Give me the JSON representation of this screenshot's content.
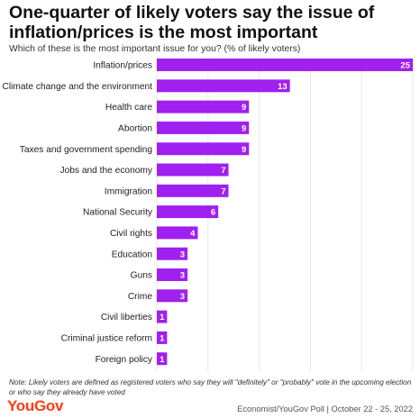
{
  "header": {
    "title": "One-quarter of likely voters say the issue of inflation/prices is the most important",
    "subtitle": "Which of these is the most important issue for you? (% of likely voters)"
  },
  "chart_data": {
    "type": "bar",
    "orientation": "horizontal",
    "categories": [
      "Inflation/prices",
      "Climate change and the environment",
      "Health care",
      "Abortion",
      "Taxes and government spending",
      "Jobs and the economy",
      "Immigration",
      "National Security",
      "Civil rights",
      "Education",
      "Guns",
      "Crime",
      "Civil liberties",
      "Criminal justice reform",
      "Foreign policy"
    ],
    "values": [
      25,
      13,
      9,
      9,
      9,
      7,
      7,
      6,
      4,
      3,
      3,
      3,
      1,
      1,
      1
    ],
    "xlim": [
      0,
      25
    ],
    "grid": true,
    "data_labels": true,
    "bar_color": "#a020f0"
  },
  "footer": {
    "note": "Note: Likely voters are defined as registered voters who say they will \"definitely\" or \"probably\" vote in the upcoming election or who say they already have voted",
    "logo": "YouGov",
    "source": "Economist/YouGov Poll | October 22 - 25, 2022"
  },
  "colors": {
    "accent": "#a020f0",
    "logo": "#ff3b14",
    "grid": "#e6e6e6"
  }
}
